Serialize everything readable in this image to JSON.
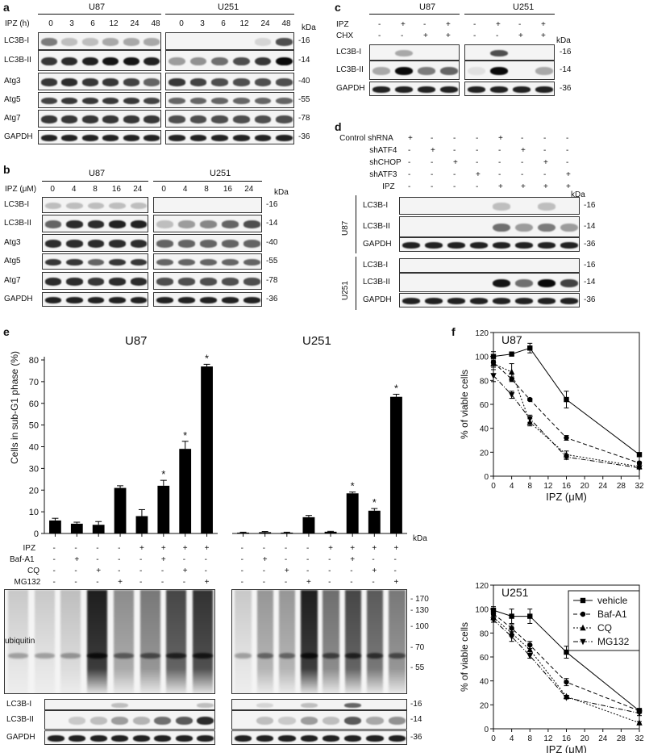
{
  "panels": {
    "a": "a",
    "b": "b",
    "c": "c",
    "d": "d",
    "e": "e",
    "f": "f"
  },
  "cell_lines": {
    "u87": "U87",
    "u251": "U251"
  },
  "units": {
    "kda": "kDa"
  },
  "panel_a": {
    "row_header": "IPZ (h)",
    "timepoints": [
      "0",
      "3",
      "6",
      "12",
      "24",
      "48",
      "0",
      "3",
      "6",
      "12",
      "24",
      "48"
    ],
    "rows": [
      {
        "name": "LC3B-I",
        "kda": "16"
      },
      {
        "name": "LC3B-II",
        "kda": "14"
      },
      {
        "name": "Atg3",
        "kda": "40"
      },
      {
        "name": "Atg5",
        "kda": "55"
      },
      {
        "name": "Atg7",
        "kda": "78"
      },
      {
        "name": "GAPDH",
        "kda": "36"
      }
    ]
  },
  "panel_b": {
    "row_header": "IPZ (μM)",
    "doses": [
      "0",
      "4",
      "8",
      "16",
      "24",
      "0",
      "4",
      "8",
      "16",
      "24"
    ],
    "rows": [
      {
        "name": "LC3B-I",
        "kda": "16"
      },
      {
        "name": "LC3B-II",
        "kda": "14"
      },
      {
        "name": "Atg3",
        "kda": "40"
      },
      {
        "name": "Atg5",
        "kda": "55"
      },
      {
        "name": "Atg7",
        "kda": "78"
      },
      {
        "name": "GAPDH",
        "kda": "36"
      }
    ]
  },
  "panel_c": {
    "conditions": [
      {
        "name": "IPZ",
        "marks": [
          "-",
          "+",
          "-",
          "+",
          "-",
          "+",
          "-",
          "+"
        ]
      },
      {
        "name": "CHX",
        "marks": [
          "-",
          "-",
          "+",
          "+",
          "-",
          "-",
          "+",
          "+"
        ]
      }
    ],
    "rows": [
      {
        "name": "LC3B-I",
        "kda": "16"
      },
      {
        "name": "LC3B-II",
        "kda": "14"
      },
      {
        "name": "GAPDH",
        "kda": "36"
      }
    ]
  },
  "panel_d": {
    "conditions": [
      {
        "name": "Control shRNA",
        "marks": [
          "+",
          "-",
          "-",
          "-",
          "+",
          "-",
          "-",
          "-"
        ]
      },
      {
        "name": "shATF4",
        "marks": [
          "-",
          "+",
          "-",
          "-",
          "-",
          "+",
          "-",
          "-"
        ]
      },
      {
        "name": "shCHOP",
        "marks": [
          "-",
          "-",
          "+",
          "-",
          "-",
          "-",
          "+",
          "-"
        ]
      },
      {
        "name": "shATF3",
        "marks": [
          "-",
          "-",
          "-",
          "+",
          "-",
          "-",
          "-",
          "+"
        ]
      },
      {
        "name": "IPZ",
        "marks": [
          "-",
          "-",
          "-",
          "-",
          "+",
          "+",
          "+",
          "+"
        ]
      }
    ],
    "rows": [
      {
        "name": "LC3B-I",
        "kda": "16"
      },
      {
        "name": "LC3B-II",
        "kda": "14"
      },
      {
        "name": "GAPDH",
        "kda": "36"
      }
    ]
  },
  "panel_e": {
    "conditions": [
      {
        "name": "IPZ",
        "marks": [
          "-",
          "-",
          "-",
          "-",
          "+",
          "+",
          "+",
          "+"
        ]
      },
      {
        "name": "Baf-A1",
        "marks": [
          "-",
          "+",
          "-",
          "-",
          "-",
          "+",
          "-",
          "-"
        ]
      },
      {
        "name": "CQ",
        "marks": [
          "-",
          "-",
          "+",
          "-",
          "-",
          "-",
          "+",
          "-"
        ]
      },
      {
        "name": "MG132",
        "marks": [
          "-",
          "-",
          "-",
          "+",
          "-",
          "-",
          "-",
          "+"
        ]
      }
    ],
    "blot_rows": [
      {
        "name": "ubiquitin"
      },
      {
        "name": "LC3B-I",
        "kda": "16"
      },
      {
        "name": "LC3B-II",
        "kda": "14"
      },
      {
        "name": "GAPDH",
        "kda": "36"
      }
    ],
    "ubiquitin_kda": [
      "170",
      "130",
      "100",
      "70",
      "55"
    ],
    "significance": "*"
  },
  "chart_data": [
    {
      "type": "bar",
      "title": "U87",
      "ylabel": "Cells in sub-G1 phase (%)",
      "ylim": [
        0,
        80
      ],
      "yticks": [
        "0",
        "10",
        "20",
        "30",
        "40",
        "50",
        "60",
        "70",
        "80"
      ],
      "values": [
        6,
        4.5,
        4,
        21,
        8,
        22,
        39,
        77
      ],
      "errors": [
        1,
        0.7,
        1.5,
        1,
        3,
        2.5,
        3.5,
        1
      ],
      "significant": [
        false,
        false,
        false,
        false,
        false,
        true,
        true,
        true
      ]
    },
    {
      "type": "bar",
      "title": "U251",
      "ylim": [
        0,
        80
      ],
      "values": [
        0.4,
        0.6,
        0.4,
        7.5,
        0.8,
        18.5,
        10.5,
        63
      ],
      "errors": [
        0.2,
        0.3,
        0.2,
        0.8,
        0.2,
        0.6,
        1,
        1.2
      ],
      "significant": [
        false,
        false,
        false,
        false,
        false,
        true,
        true,
        true
      ]
    },
    {
      "type": "line",
      "title": "U87",
      "xlabel": "IPZ (μM)",
      "ylabel": "% of viable cells",
      "xlim": [
        0,
        32
      ],
      "ylim": [
        0,
        120
      ],
      "xticks": [
        "0",
        "4",
        "8",
        "12",
        "16",
        "20",
        "24",
        "28",
        "32"
      ],
      "yticks": [
        "0",
        "20",
        "40",
        "60",
        "80",
        "100",
        "120"
      ],
      "x": [
        0,
        4,
        8,
        16,
        32
      ],
      "series": [
        {
          "name": "vehicle",
          "values": [
            100,
            102,
            107,
            64,
            18
          ],
          "errors": [
            4,
            1,
            4,
            7,
            1
          ]
        },
        {
          "name": "Baf-A1",
          "values": [
            95,
            81,
            64,
            32,
            11
          ],
          "errors": [
            2,
            2,
            1,
            2,
            1
          ]
        },
        {
          "name": "CQ",
          "values": [
            94,
            87,
            45,
            18,
            8
          ],
          "errors": [
            3,
            7,
            3,
            3,
            2
          ]
        },
        {
          "name": "MG132",
          "values": [
            84,
            68,
            48,
            16,
            7
          ],
          "errors": [
            5,
            3,
            3,
            2,
            1
          ]
        }
      ]
    },
    {
      "type": "line",
      "title": "U251",
      "xlabel": "IPZ (μM)",
      "ylabel": "% of viable cells",
      "xlim": [
        0,
        32
      ],
      "ylim": [
        0,
        120
      ],
      "xticks": [
        "0",
        "4",
        "8",
        "12",
        "16",
        "20",
        "24",
        "28",
        "32"
      ],
      "yticks": [
        "0",
        "20",
        "40",
        "60",
        "80",
        "100",
        "120"
      ],
      "x": [
        0,
        4,
        8,
        16,
        32
      ],
      "legend": "top-right",
      "series": [
        {
          "name": "vehicle",
          "values": [
            99,
            94,
            94,
            64,
            15
          ],
          "errors": [
            3,
            6,
            6,
            5,
            2
          ]
        },
        {
          "name": "Baf-A1",
          "values": [
            96,
            84,
            70,
            39,
            15
          ],
          "errors": [
            2,
            3,
            3,
            3,
            2
          ]
        },
        {
          "name": "CQ",
          "values": [
            93,
            80,
            66,
            27,
            5
          ],
          "errors": [
            2,
            3,
            3,
            1,
            1
          ]
        },
        {
          "name": "MG132",
          "values": [
            91,
            77,
            61,
            26,
            13
          ],
          "errors": [
            2,
            4,
            2,
            1,
            2
          ]
        }
      ]
    }
  ]
}
